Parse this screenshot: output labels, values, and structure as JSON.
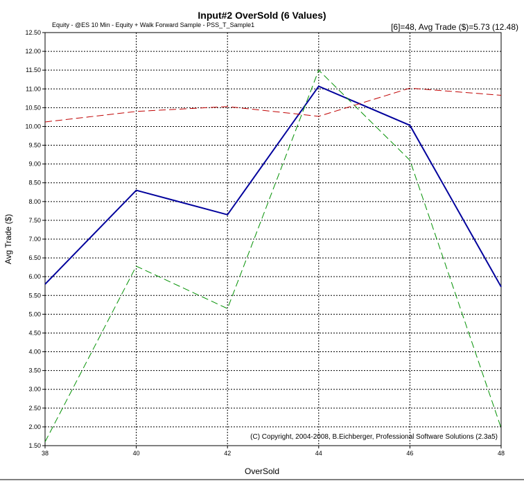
{
  "chart_data": {
    "type": "line",
    "title": "Input#2 OverSold (6 Values)",
    "subtitle": "Equity - @ES 10 Min - Equity + Walk Forward Sample - PSS_T_Sample1",
    "stat_text": "[6]=48,  Avg Trade ($)=5.73 (12.48)",
    "xlabel": "OverSold",
    "ylabel": "Avg Trade ($)",
    "copyright": "(C) Copyright, 2004-2008,  B.Eichberger,  Professional Software Solutions (2.3a5)",
    "x": [
      38,
      40,
      42,
      44,
      46,
      48
    ],
    "xlim": [
      38,
      48
    ],
    "ylim": [
      1.5,
      12.5
    ],
    "y_ticks": [
      "1.50",
      "2.00",
      "2.50",
      "3.00",
      "3.50",
      "4.00",
      "4.50",
      "5.00",
      "5.50",
      "6.00",
      "6.50",
      "7.00",
      "7.50",
      "8.00",
      "8.50",
      "9.00",
      "9.50",
      "10.00",
      "10.50",
      "11.00",
      "11.50",
      "12.00",
      "12.50"
    ],
    "x_ticks": [
      "38",
      "40",
      "42",
      "44",
      "46",
      "48"
    ],
    "grid": true,
    "series": [
      {
        "values": [
          5.8,
          8.3,
          7.65,
          11.07,
          10.03,
          5.73
        ],
        "color": "#00009c",
        "style": "solid"
      },
      {
        "values": [
          1.6,
          6.28,
          5.15,
          11.5,
          9.1,
          1.97
        ],
        "color": "#009000",
        "style": "dashed"
      },
      {
        "values": [
          10.12,
          10.4,
          10.53,
          10.27,
          11.02,
          10.83
        ],
        "color": "#c00000",
        "style": "dashed"
      }
    ]
  }
}
